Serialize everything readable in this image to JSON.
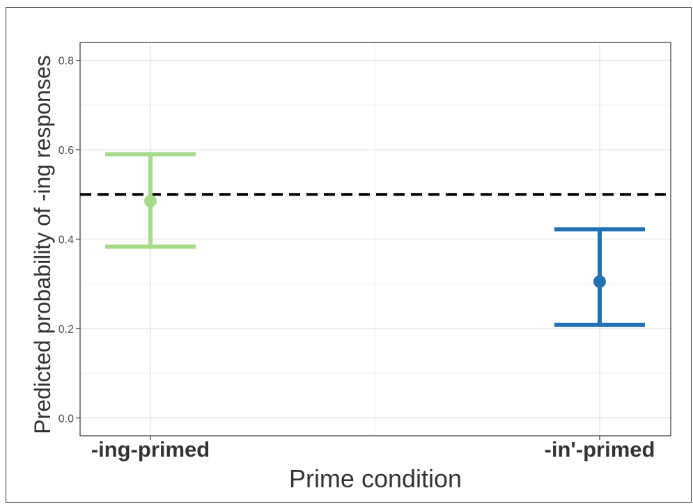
{
  "chart_data": {
    "type": "errorbar",
    "categories": [
      "-ing-primed",
      "-in'-primed"
    ],
    "series": [
      {
        "values": [
          0.485,
          0.305
        ],
        "lower": [
          0.383,
          0.208
        ],
        "upper": [
          0.59,
          0.422
        ],
        "colors": [
          "#a6db8a",
          "#2072b3"
        ]
      }
    ],
    "reference_line": {
      "y": 0.5,
      "style": "dashed",
      "color": "#000000"
    },
    "xlabel": "Prime condition",
    "ylabel": "Predicted probability of -ing responses",
    "ylim": [
      -0.04,
      0.84
    ],
    "yticks": [
      0.0,
      0.2,
      0.4,
      0.6,
      0.8
    ],
    "ytick_labels": [
      "0.0",
      "0.2",
      "0.4",
      "0.6",
      "0.8"
    ],
    "grid": true,
    "legend": "none"
  }
}
